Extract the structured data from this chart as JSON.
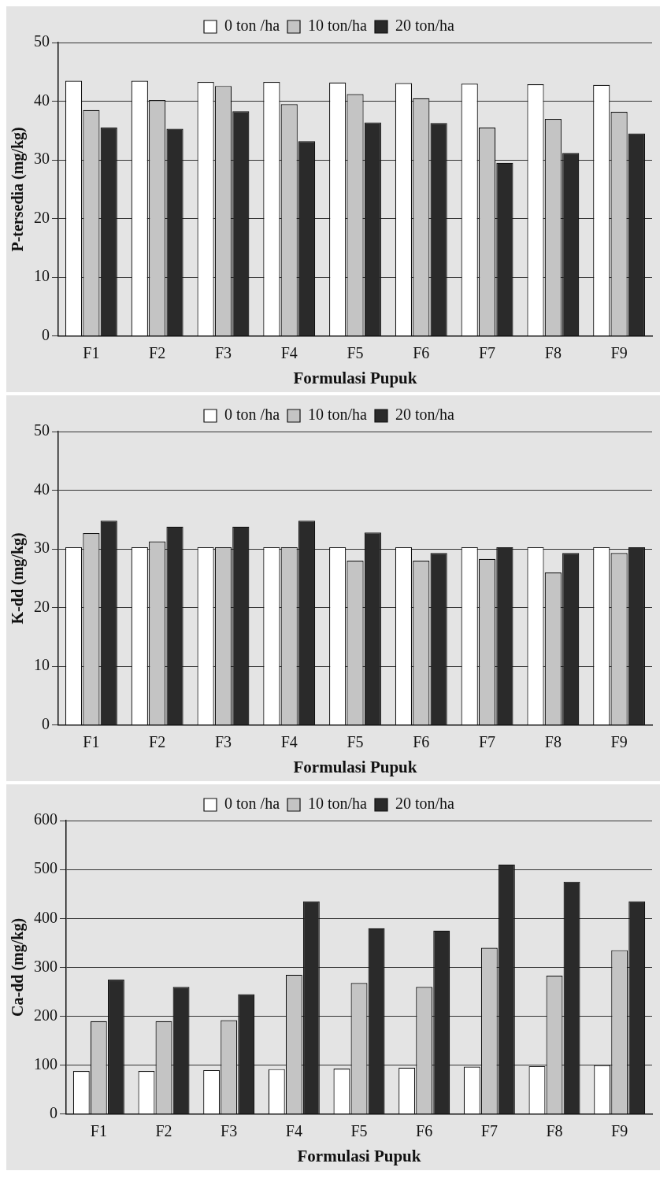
{
  "chart_data": [
    {
      "type": "bar",
      "xlabel": "Formulasi Pupuk",
      "ylabel": "P-tersedia (mg/kg)",
      "categories": [
        "F1",
        "F2",
        "F3",
        "F4",
        "F5",
        "F6",
        "F7",
        "F8",
        "F9"
      ],
      "ylim": [
        0,
        50
      ],
      "yticks": [
        0,
        10,
        20,
        30,
        40,
        50
      ],
      "grid": "y",
      "legend": "top",
      "series": [
        {
          "name": "0 ton /ha",
          "color": "#ffffff",
          "values": [
            43.5,
            43.5,
            43.3,
            43.3,
            43.2,
            43.1,
            43.0,
            42.9,
            42.8
          ]
        },
        {
          "name": "10 ton/ha",
          "color": "#c4c4c4",
          "values": [
            38.5,
            40.2,
            42.6,
            39.5,
            41.2,
            40.5,
            35.5,
            37.0,
            38.2
          ]
        },
        {
          "name": "20 ton/ha",
          "color": "#2a2a2a",
          "values": [
            35.5,
            35.3,
            38.3,
            33.2,
            36.4,
            36.3,
            29.5,
            31.2,
            34.5
          ]
        }
      ]
    },
    {
      "type": "bar",
      "xlabel": "Formulasi Pupuk",
      "ylabel": "K-dd (mg/kg)",
      "categories": [
        "F1",
        "F2",
        "F3",
        "F4",
        "F5",
        "F6",
        "F7",
        "F8",
        "F9"
      ],
      "ylim": [
        0,
        50
      ],
      "yticks": [
        0,
        10,
        20,
        30,
        40,
        50
      ],
      "grid": "y",
      "legend": "top",
      "series": [
        {
          "name": "0 ton /ha",
          "color": "#ffffff",
          "values": [
            30.3,
            30.3,
            30.3,
            30.3,
            30.3,
            30.3,
            30.3,
            30.3,
            30.3
          ]
        },
        {
          "name": "10 ton/ha",
          "color": "#c4c4c4",
          "values": [
            32.7,
            31.3,
            30.3,
            30.3,
            28.0,
            28.0,
            28.3,
            26.0,
            29.3
          ]
        },
        {
          "name": "20 ton/ha",
          "color": "#2a2a2a",
          "values": [
            34.8,
            33.8,
            33.8,
            34.8,
            32.8,
            29.3,
            30.3,
            29.3,
            30.3
          ]
        }
      ]
    },
    {
      "type": "bar",
      "xlabel": "Formulasi Pupuk",
      "ylabel": "Ca-dd (mg/kg)",
      "categories": [
        "F1",
        "F2",
        "F3",
        "F4",
        "F5",
        "F6",
        "F7",
        "F8",
        "F9"
      ],
      "ylim": [
        0,
        600
      ],
      "yticks": [
        0,
        100,
        200,
        300,
        400,
        500,
        600
      ],
      "grid": "y",
      "legend": "top",
      "series": [
        {
          "name": "0 ton /ha",
          "color": "#ffffff",
          "values": [
            88,
            88,
            90,
            92,
            93,
            95,
            97,
            98,
            100
          ]
        },
        {
          "name": "10 ton/ha",
          "color": "#c4c4c4",
          "values": [
            190,
            190,
            192,
            285,
            268,
            260,
            340,
            283,
            335
          ]
        },
        {
          "name": "20 ton/ha",
          "color": "#2a2a2a",
          "values": [
            275,
            260,
            245,
            435,
            380,
            375,
            510,
            475,
            435
          ]
        }
      ]
    }
  ]
}
